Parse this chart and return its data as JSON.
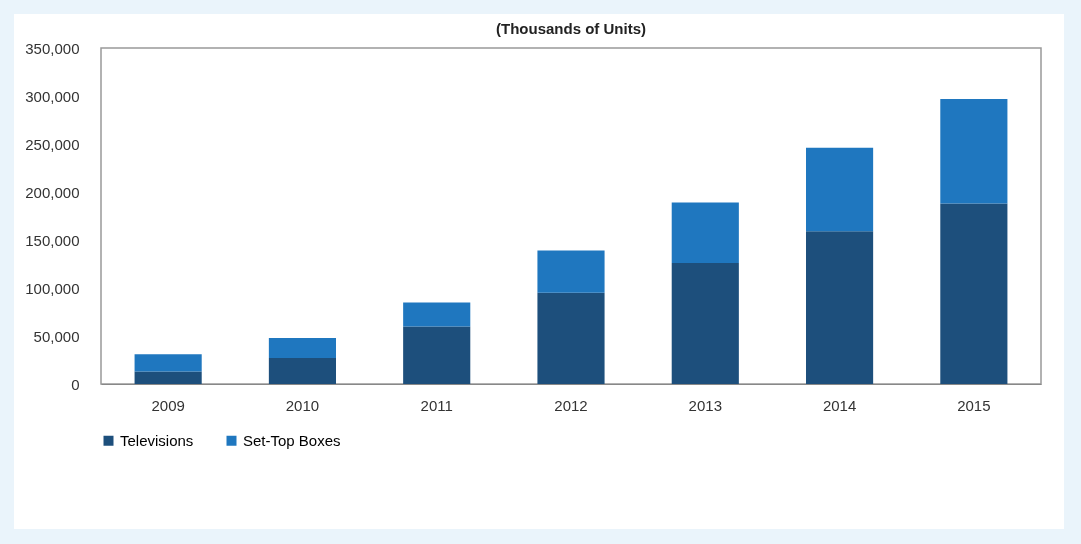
{
  "chart_data": {
    "type": "bar",
    "title": "(Thousands of Units)",
    "categories": [
      "2009",
      "2010",
      "2011",
      "2012",
      "2013",
      "2014",
      "2015"
    ],
    "stacked": true,
    "series": [
      {
        "name": "Televisions",
        "color": "#1d4f7c",
        "values": [
          13000,
          27000,
          60000,
          95000,
          126000,
          159000,
          188000
        ]
      },
      {
        "name": "Set-Top Boxes",
        "color": "#1f77bf",
        "values": [
          18000,
          21000,
          25000,
          44000,
          63000,
          87000,
          109000
        ]
      }
    ],
    "ylim": [
      0,
      350000
    ],
    "yticks": [
      0,
      {
        "value": 50000,
        "label": "50,000"
      },
      {
        "value": 100000,
        "label": "100,000"
      },
      {
        "value": 150000,
        "label": "150,000"
      },
      {
        "value": 200000,
        "label": "200,000"
      },
      {
        "value": 250000,
        "label": "250,000"
      },
      {
        "value": 300000,
        "label": "300,000"
      },
      {
        "value": 350000,
        "label": "350,000"
      }
    ],
    "grid": false,
    "legend": "bottom"
  }
}
